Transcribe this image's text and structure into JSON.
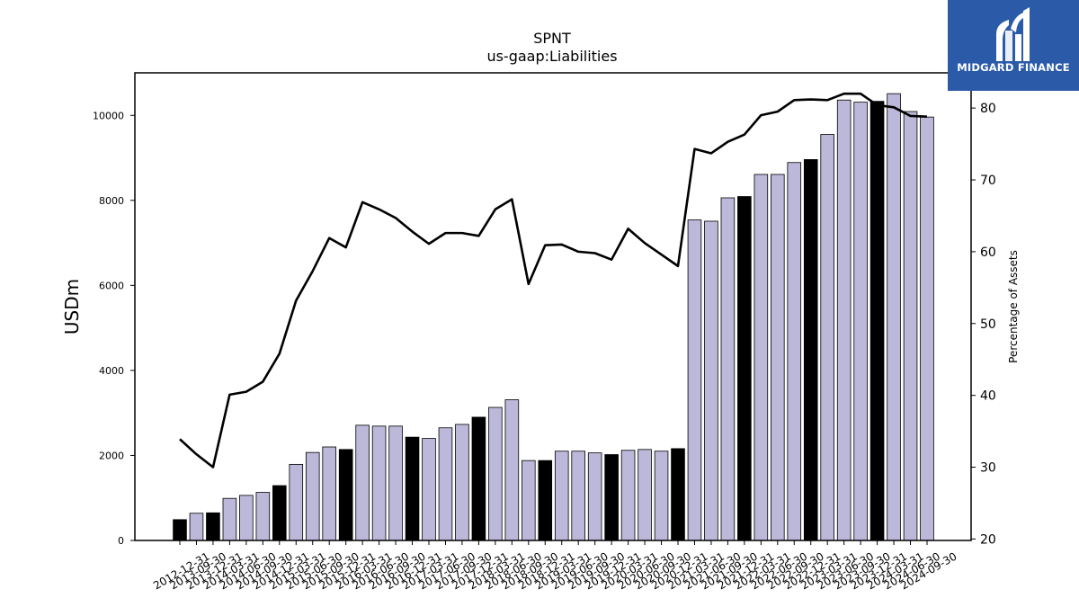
{
  "chart_data": {
    "type": "bar",
    "title": "SPNT",
    "subtitle": "us-gaap:Liabilities",
    "ylabel": "USDm",
    "y2label": "Percentage of Assets",
    "ylim": [
      0,
      11000
    ],
    "y2lim": [
      19.8,
      84.9
    ],
    "yticks": [
      0,
      2000,
      4000,
      6000,
      8000,
      10000
    ],
    "y2ticks": [
      20,
      30,
      40,
      50,
      60,
      70,
      80
    ],
    "highlight_color": "#000000",
    "bar_color": "#bcb8d9",
    "line_color": "#000000",
    "categories": [
      "2012-12-31",
      "2013-09-30",
      "2013-12-31",
      "2014-03-31",
      "2014-06-30",
      "2014-09-30",
      "2014-12-31",
      "2015-03-31",
      "2015-06-30",
      "2015-09-30",
      "2015-12-31",
      "2016-03-31",
      "2016-06-30",
      "2016-09-30",
      "2016-12-31",
      "2017-03-31",
      "2017-06-30",
      "2017-09-30",
      "2017-12-31",
      "2018-03-31",
      "2018-06-30",
      "2018-09-30",
      "2018-12-31",
      "2019-03-31",
      "2019-06-30",
      "2019-09-30",
      "2019-12-31",
      "2020-03-31",
      "2020-06-30",
      "2020-09-30",
      "2020-12-31",
      "2021-03-31",
      "2021-06-30",
      "2021-09-30",
      "2021-12-31",
      "2022-03-31",
      "2022-06-30",
      "2022-09-30",
      "2022-12-31",
      "2023-03-31",
      "2023-06-30",
      "2023-09-30",
      "2023-12-31",
      "2024-03-31",
      "2024-06-30",
      "2024-09-30"
    ],
    "series": [
      {
        "type": "bar",
        "values": [
          490,
          640,
          650,
          990,
          1060,
          1130,
          1290,
          1790,
          2070,
          2200,
          2140,
          2710,
          2690,
          2690,
          2430,
          2400,
          2650,
          2730,
          2900,
          3130,
          3310,
          1880,
          1880,
          2100,
          2100,
          2060,
          2020,
          2120,
          2140,
          2100,
          2160,
          7540,
          7510,
          8060,
          8090,
          8610,
          8610,
          8890,
          8960,
          9550,
          10360,
          10310,
          10330,
          10510,
          10090,
          9960
        ],
        "highlight": [
          true,
          false,
          true,
          false,
          false,
          false,
          true,
          false,
          false,
          false,
          true,
          false,
          false,
          false,
          true,
          false,
          false,
          false,
          true,
          false,
          false,
          false,
          true,
          false,
          false,
          false,
          true,
          false,
          false,
          false,
          true,
          false,
          false,
          false,
          true,
          false,
          false,
          false,
          true,
          false,
          false,
          false,
          true,
          false,
          false,
          false
        ]
      },
      {
        "type": "line",
        "axis": "right",
        "values": [
          33.9,
          31.8,
          30.0,
          40.1,
          40.5,
          41.9,
          45.8,
          53.2,
          57.3,
          61.9,
          60.6,
          66.9,
          65.9,
          64.7,
          62.8,
          61.1,
          62.6,
          62.6,
          62.2,
          65.9,
          67.3,
          55.5,
          60.9,
          61.0,
          60.0,
          59.8,
          58.9,
          63.2,
          61.2,
          59.6,
          58.0,
          74.3,
          73.7,
          75.3,
          76.3,
          79.0,
          79.5,
          81.1,
          81.2,
          81.1,
          82.0,
          82.0,
          80.4,
          80.1,
          78.9,
          78.8
        ]
      }
    ]
  },
  "logo": {
    "brand_text": "MIDGARD FINANCE"
  }
}
